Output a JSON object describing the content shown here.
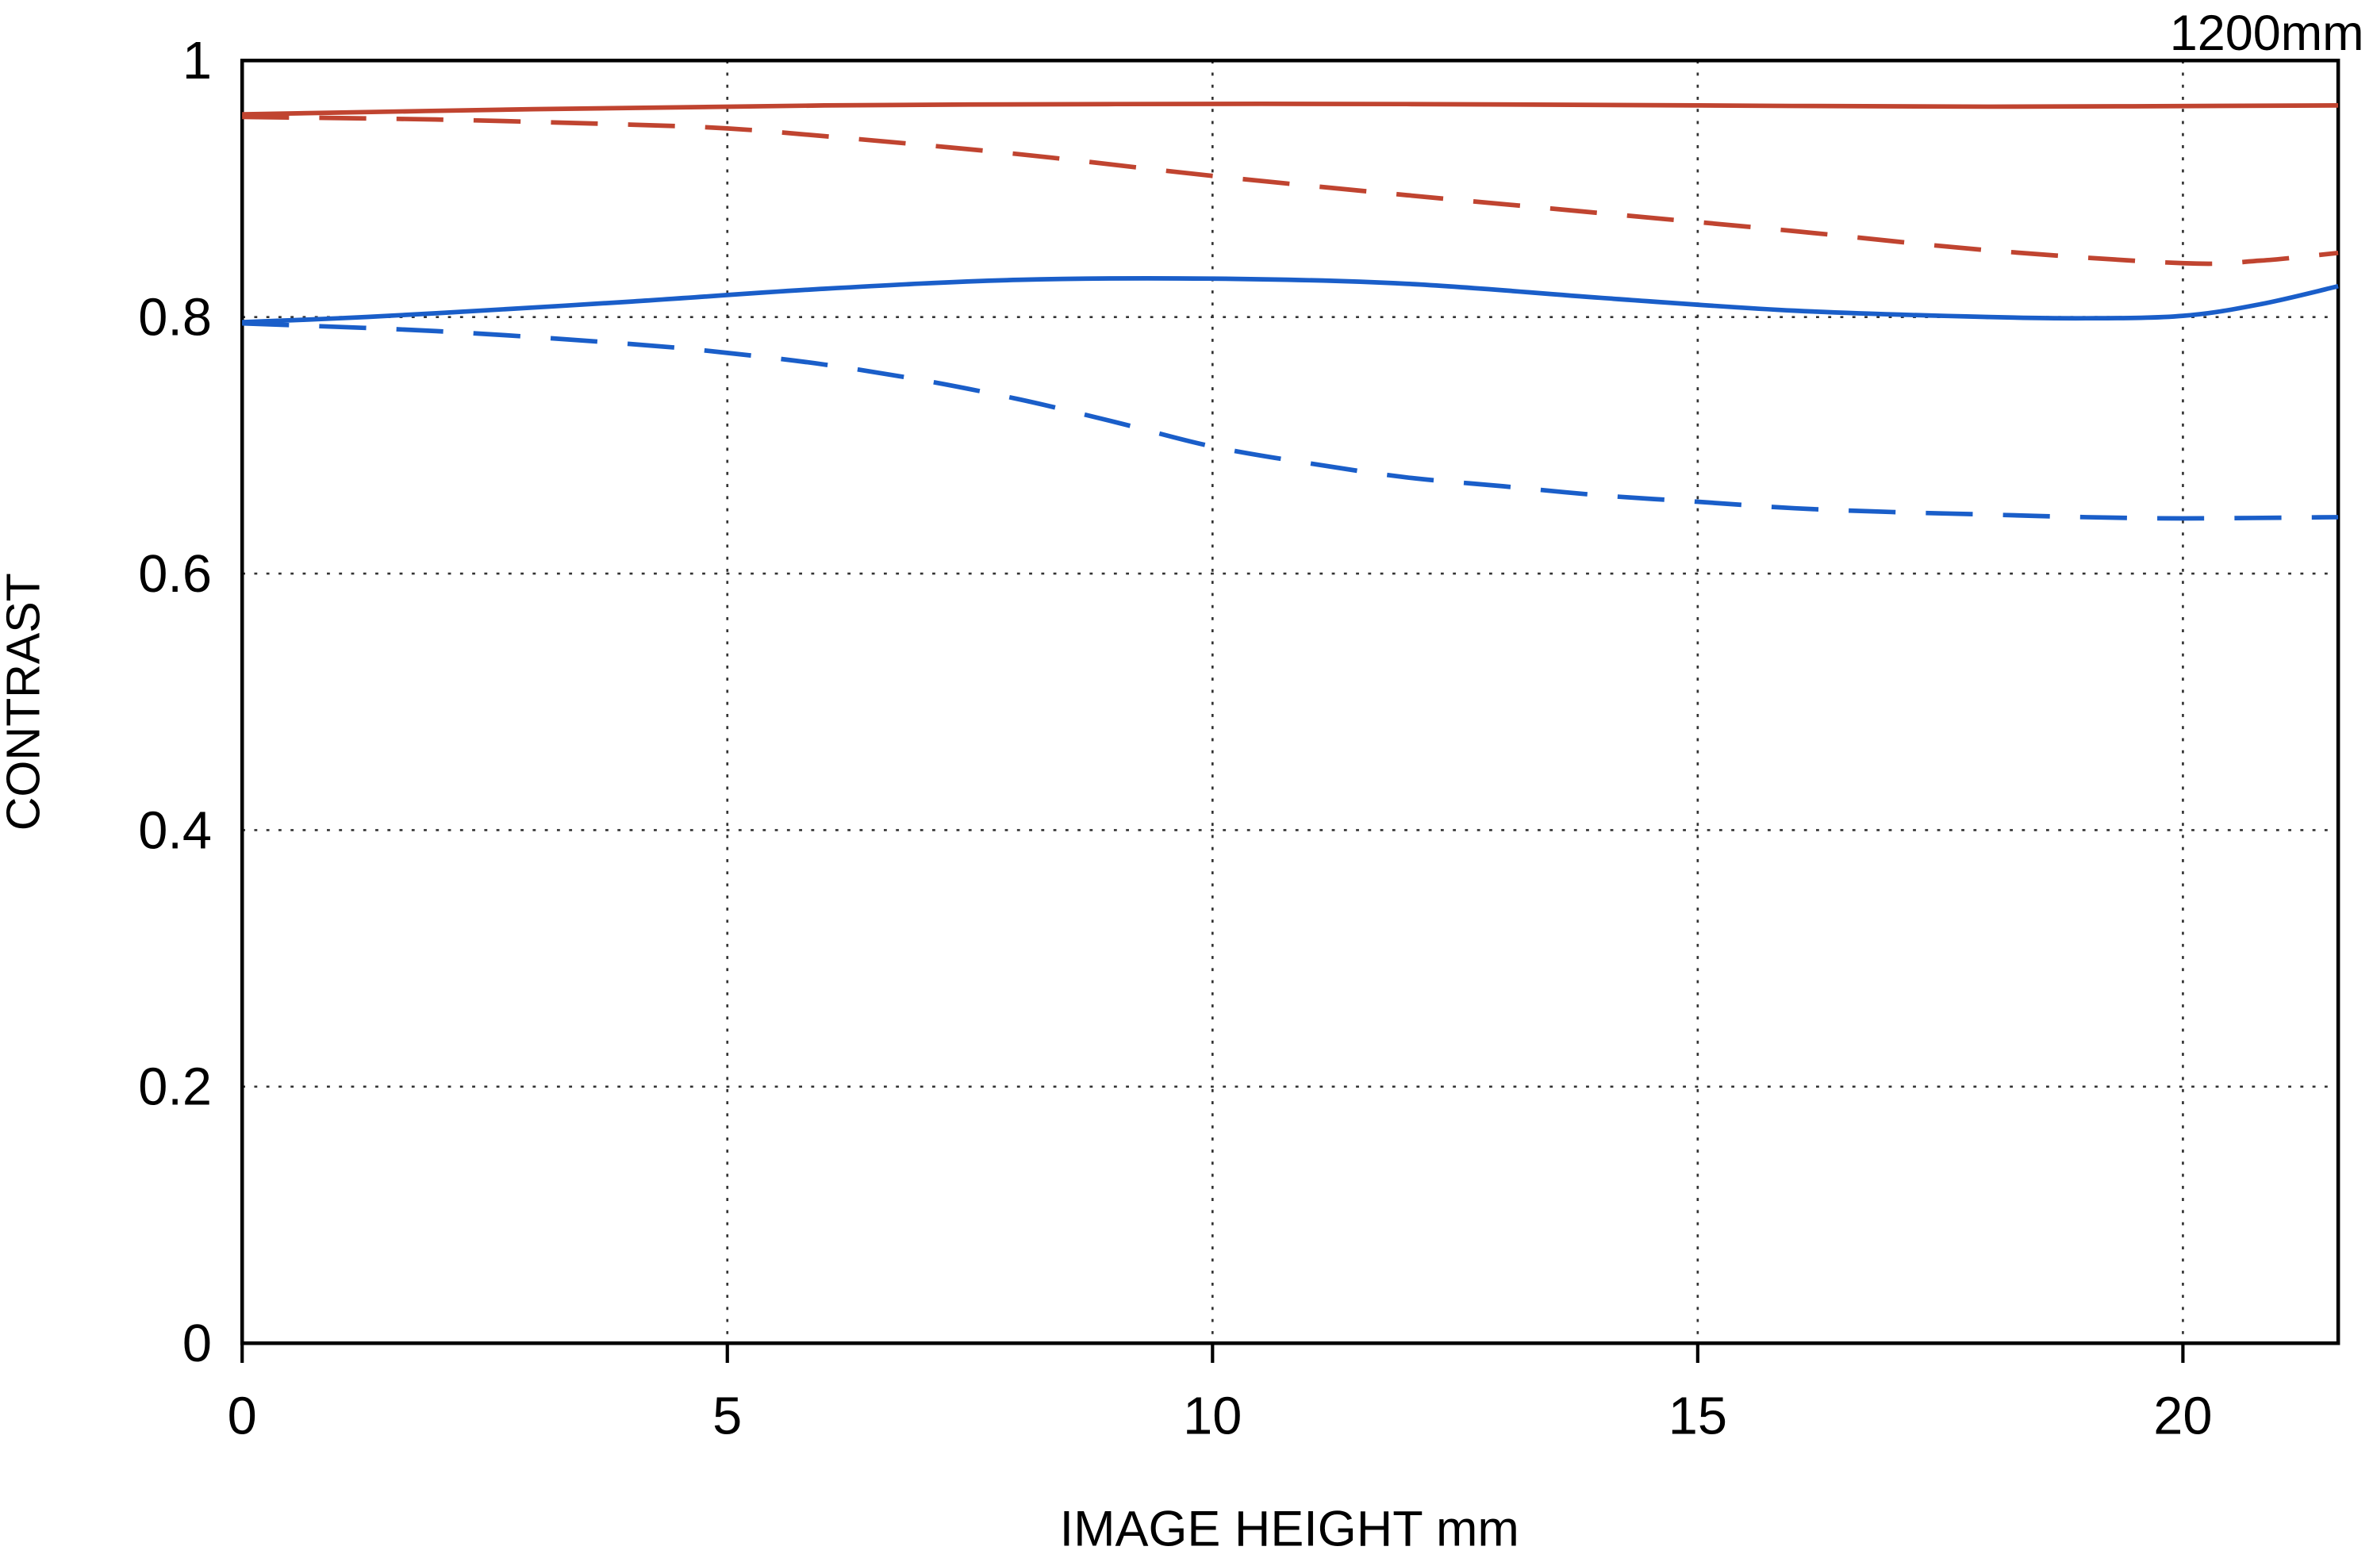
{
  "chart_data": {
    "type": "line",
    "title": "1200mm",
    "xlabel": "IMAGE HEIGHT  mm",
    "ylabel": "CONTRAST",
    "xlim": [
      0,
      21.6
    ],
    "ylim": [
      0,
      1
    ],
    "x_ticks": [
      0,
      5,
      10,
      15,
      20
    ],
    "y_ticks": [
      0,
      0.2,
      0.4,
      0.6,
      0.8,
      1
    ],
    "y_tick_labels": [
      "0",
      "0.2",
      "0.4",
      "0.6",
      "0.8",
      "1"
    ],
    "x_tick_labels": [
      "0",
      "5",
      "10",
      "15",
      "20"
    ],
    "grid": true,
    "legend": "none",
    "colors": {
      "red": "#c04430",
      "blue": "#1a5ec9"
    },
    "series": [
      {
        "name": "red-solid",
        "color": "red",
        "style": "solid",
        "x": [
          0,
          3,
          6,
          9,
          12,
          15,
          18,
          21.6
        ],
        "y": [
          0.958,
          0.962,
          0.965,
          0.966,
          0.966,
          0.965,
          0.964,
          0.965
        ]
      },
      {
        "name": "red-dashed",
        "color": "red",
        "style": "dashed",
        "x": [
          0,
          2,
          4,
          5,
          6,
          8,
          10,
          12,
          14,
          16,
          18,
          20,
          20.8,
          21.6
        ],
        "y": [
          0.956,
          0.954,
          0.95,
          0.947,
          0.941,
          0.927,
          0.91,
          0.895,
          0.881,
          0.867,
          0.852,
          0.842,
          0.844,
          0.85
        ]
      },
      {
        "name": "blue-solid",
        "color": "blue",
        "style": "solid",
        "x": [
          0,
          1,
          2,
          4,
          6,
          8,
          10,
          12,
          14,
          16,
          18,
          19,
          20,
          20.8,
          21.6
        ],
        "y": [
          0.796,
          0.799,
          0.803,
          0.812,
          0.822,
          0.829,
          0.83,
          0.826,
          0.815,
          0.805,
          0.8,
          0.799,
          0.801,
          0.81,
          0.824
        ]
      },
      {
        "name": "blue-dashed",
        "color": "blue",
        "style": "dashed",
        "x": [
          0,
          2,
          4,
          5,
          6,
          7,
          8,
          9,
          10,
          11,
          12,
          13,
          14,
          15,
          16,
          17,
          18,
          19,
          20,
          21.6
        ],
        "y": [
          0.795,
          0.789,
          0.779,
          0.772,
          0.763,
          0.751,
          0.736,
          0.718,
          0.699,
          0.686,
          0.675,
          0.668,
          0.661,
          0.656,
          0.651,
          0.648,
          0.646,
          0.644,
          0.643,
          0.644
        ]
      }
    ]
  }
}
